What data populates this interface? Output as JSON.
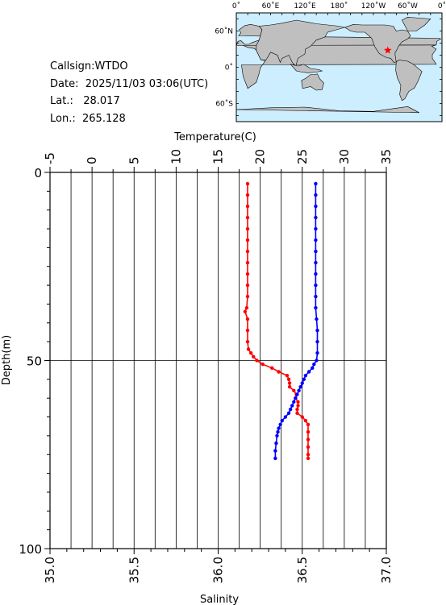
{
  "info": {
    "callsign_label": "Callsign:",
    "callsign": "WTDO",
    "date_label": "Date:",
    "date": "2025/11/03 03:06(UTC)",
    "lat_label": "Lat.:",
    "lat": "28.017",
    "lon_label": "Lon.:",
    "lon": "265.128"
  },
  "map": {
    "top_ticks": [
      "0˚",
      "60˚E",
      "120˚E",
      "180˚",
      "120˚W",
      "60˚W",
      "0˚"
    ],
    "left_ticks": [
      "60˚N",
      "0˚",
      "60˚S"
    ],
    "ocean_color": "#cceeff",
    "land_color": "#bfbfbf",
    "marker_color": "#ff0000",
    "marker_lat": 28.017,
    "marker_lon": 265.128
  },
  "chart_data": {
    "type": "line",
    "y_axis": {
      "label": "Depth(m)",
      "range": [
        0,
        100
      ],
      "ticks": [
        "0",
        "50",
        "100"
      ],
      "inverted": true
    },
    "top_axis": {
      "label": "Temperature(C)",
      "range": [
        -5,
        35
      ],
      "ticks": [
        "-5",
        "0",
        "5",
        "10",
        "15",
        "20",
        "25",
        "30",
        "35"
      ]
    },
    "bottom_axis": {
      "label": "Salinity",
      "range": [
        35.0,
        37.0
      ],
      "ticks": [
        "35.0",
        "35.5",
        "36.0",
        "36.5",
        "37.0"
      ]
    },
    "temperature_color": "#ff0000",
    "salinity_color": "#0000ff",
    "temperature": [
      {
        "depth": 3,
        "value": 18.5
      },
      {
        "depth": 6,
        "value": 18.5
      },
      {
        "depth": 9,
        "value": 18.5
      },
      {
        "depth": 12,
        "value": 18.5
      },
      {
        "depth": 15,
        "value": 18.5
      },
      {
        "depth": 18,
        "value": 18.5
      },
      {
        "depth": 21,
        "value": 18.5
      },
      {
        "depth": 24,
        "value": 18.5
      },
      {
        "depth": 27,
        "value": 18.5
      },
      {
        "depth": 30,
        "value": 18.5
      },
      {
        "depth": 33,
        "value": 18.5
      },
      {
        "depth": 36,
        "value": 18.4
      },
      {
        "depth": 37,
        "value": 18.2
      },
      {
        "depth": 39,
        "value": 18.5
      },
      {
        "depth": 42,
        "value": 18.5
      },
      {
        "depth": 45,
        "value": 18.5
      },
      {
        "depth": 47,
        "value": 18.6
      },
      {
        "depth": 48,
        "value": 18.9
      },
      {
        "depth": 49,
        "value": 19.2
      },
      {
        "depth": 50,
        "value": 19.6
      },
      {
        "depth": 51,
        "value": 20.3
      },
      {
        "depth": 52,
        "value": 21.4
      },
      {
        "depth": 53,
        "value": 22.2
      },
      {
        "depth": 54,
        "value": 23.2
      },
      {
        "depth": 55,
        "value": 23.4
      },
      {
        "depth": 56,
        "value": 23.5
      },
      {
        "depth": 57,
        "value": 23.5
      },
      {
        "depth": 58,
        "value": 24.0
      },
      {
        "depth": 59,
        "value": 24.3
      },
      {
        "depth": 60,
        "value": 24.2
      },
      {
        "depth": 61,
        "value": 24.5
      },
      {
        "depth": 62,
        "value": 24.5
      },
      {
        "depth": 63,
        "value": 24.4
      },
      {
        "depth": 64,
        "value": 24.4
      },
      {
        "depth": 65,
        "value": 25.0
      },
      {
        "depth": 66,
        "value": 25.4
      },
      {
        "depth": 67,
        "value": 25.7
      },
      {
        "depth": 69,
        "value": 25.7
      },
      {
        "depth": 71,
        "value": 25.7
      },
      {
        "depth": 73,
        "value": 25.7
      },
      {
        "depth": 75,
        "value": 25.7
      },
      {
        "depth": 76,
        "value": 25.7
      }
    ],
    "salinity": [
      {
        "depth": 3,
        "value": 36.58
      },
      {
        "depth": 6,
        "value": 36.58
      },
      {
        "depth": 9,
        "value": 36.58
      },
      {
        "depth": 12,
        "value": 36.58
      },
      {
        "depth": 15,
        "value": 36.58
      },
      {
        "depth": 18,
        "value": 36.58
      },
      {
        "depth": 21,
        "value": 36.58
      },
      {
        "depth": 24,
        "value": 36.58
      },
      {
        "depth": 27,
        "value": 36.58
      },
      {
        "depth": 30,
        "value": 36.58
      },
      {
        "depth": 33,
        "value": 36.58
      },
      {
        "depth": 36,
        "value": 36.58
      },
      {
        "depth": 39,
        "value": 36.585
      },
      {
        "depth": 42,
        "value": 36.59
      },
      {
        "depth": 45,
        "value": 36.59
      },
      {
        "depth": 48,
        "value": 36.59
      },
      {
        "depth": 50,
        "value": 36.585
      },
      {
        "depth": 51,
        "value": 36.57
      },
      {
        "depth": 52,
        "value": 36.56
      },
      {
        "depth": 53,
        "value": 36.54
      },
      {
        "depth": 54,
        "value": 36.52
      },
      {
        "depth": 55,
        "value": 36.51
      },
      {
        "depth": 56,
        "value": 36.5
      },
      {
        "depth": 57,
        "value": 36.49
      },
      {
        "depth": 58,
        "value": 36.48
      },
      {
        "depth": 59,
        "value": 36.47
      },
      {
        "depth": 60,
        "value": 36.46
      },
      {
        "depth": 61,
        "value": 36.45
      },
      {
        "depth": 62,
        "value": 36.44
      },
      {
        "depth": 63,
        "value": 36.43
      },
      {
        "depth": 64,
        "value": 36.42
      },
      {
        "depth": 65,
        "value": 36.4
      },
      {
        "depth": 66,
        "value": 36.38
      },
      {
        "depth": 67,
        "value": 36.37
      },
      {
        "depth": 68,
        "value": 36.36
      },
      {
        "depth": 69,
        "value": 36.355
      },
      {
        "depth": 70,
        "value": 36.35
      },
      {
        "depth": 72,
        "value": 36.345
      },
      {
        "depth": 74,
        "value": 36.34
      },
      {
        "depth": 76,
        "value": 36.34
      }
    ]
  }
}
